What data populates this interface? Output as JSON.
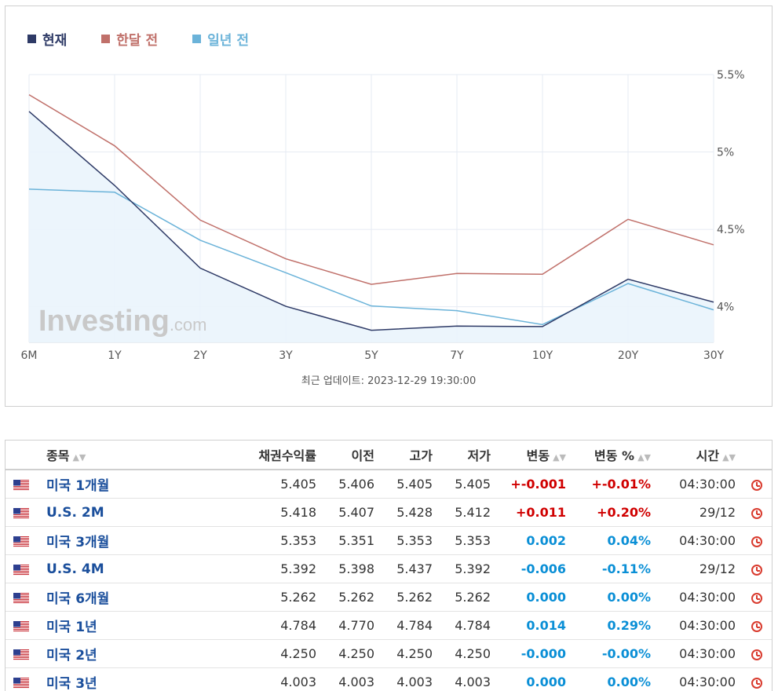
{
  "chart_data": {
    "type": "line",
    "categories": [
      "6M",
      "1Y",
      "2Y",
      "3Y",
      "5Y",
      "7Y",
      "10Y",
      "20Y",
      "30Y"
    ],
    "series": [
      {
        "name": "현재",
        "color": "#2e3a66",
        "values": [
          5.262,
          4.784,
          4.25,
          4.003,
          3.848,
          3.875,
          3.872,
          4.178,
          4.03
        ],
        "area": true
      },
      {
        "name": "한달 전",
        "color": "#c0706a",
        "values": [
          5.37,
          5.04,
          4.56,
          4.31,
          4.145,
          4.215,
          4.21,
          4.565,
          4.4
        ]
      },
      {
        "name": "일년 전",
        "color": "#6bb3d9",
        "values": [
          4.76,
          4.74,
          4.43,
          4.22,
          4.005,
          3.975,
          3.885,
          4.15,
          3.98
        ]
      }
    ],
    "y_ticks": [
      "5.5%",
      "5%",
      "4.5%",
      "4%"
    ],
    "y_tick_values": [
      5.5,
      5.0,
      4.5,
      4.0
    ],
    "ylim": [
      3.77,
      5.5
    ],
    "grid": true,
    "legend_position": "top-left",
    "watermark": {
      "brand": "Investing",
      ".com": ".com"
    }
  },
  "update_text": "최근 업데이트: 2023-12-29 19:30:00",
  "table": {
    "headers": {
      "name": "종목",
      "yield": "채권수익률",
      "prev": "이전",
      "high": "고가",
      "low": "저가",
      "chg": "변동",
      "chg_pct": "변동 %",
      "time": "시간"
    },
    "rows": [
      {
        "name": "미국 1개월",
        "yield": "5.405",
        "prev": "5.406",
        "high": "5.405",
        "low": "5.405",
        "chg": "+-0.001",
        "chg_pct": "+-0.01%",
        "time": "04:30:00",
        "dir": "up"
      },
      {
        "name": "U.S. 2M",
        "yield": "5.418",
        "prev": "5.407",
        "high": "5.428",
        "low": "5.412",
        "chg": "+0.011",
        "chg_pct": "+0.20%",
        "time": "29/12",
        "dir": "up"
      },
      {
        "name": "미국 3개월",
        "yield": "5.353",
        "prev": "5.351",
        "high": "5.353",
        "low": "5.353",
        "chg": "0.002",
        "chg_pct": "0.04%",
        "time": "04:30:00",
        "dir": "down"
      },
      {
        "name": "U.S. 4M",
        "yield": "5.392",
        "prev": "5.398",
        "high": "5.437",
        "low": "5.392",
        "chg": "-0.006",
        "chg_pct": "-0.11%",
        "time": "29/12",
        "dir": "down"
      },
      {
        "name": "미국 6개월",
        "yield": "5.262",
        "prev": "5.262",
        "high": "5.262",
        "low": "5.262",
        "chg": "0.000",
        "chg_pct": "0.00%",
        "time": "04:30:00",
        "dir": "down"
      },
      {
        "name": "미국 1년",
        "yield": "4.784",
        "prev": "4.770",
        "high": "4.784",
        "low": "4.784",
        "chg": "0.014",
        "chg_pct": "0.29%",
        "time": "04:30:00",
        "dir": "down"
      },
      {
        "name": "미국 2년",
        "yield": "4.250",
        "prev": "4.250",
        "high": "4.250",
        "low": "4.250",
        "chg": "-0.000",
        "chg_pct": "-0.00%",
        "time": "04:30:00",
        "dir": "down"
      },
      {
        "name": "미국 3년",
        "yield": "4.003",
        "prev": "4.003",
        "high": "4.003",
        "low": "4.003",
        "chg": "0.000",
        "chg_pct": "0.00%",
        "time": "04:30:00",
        "dir": "down"
      }
    ]
  }
}
